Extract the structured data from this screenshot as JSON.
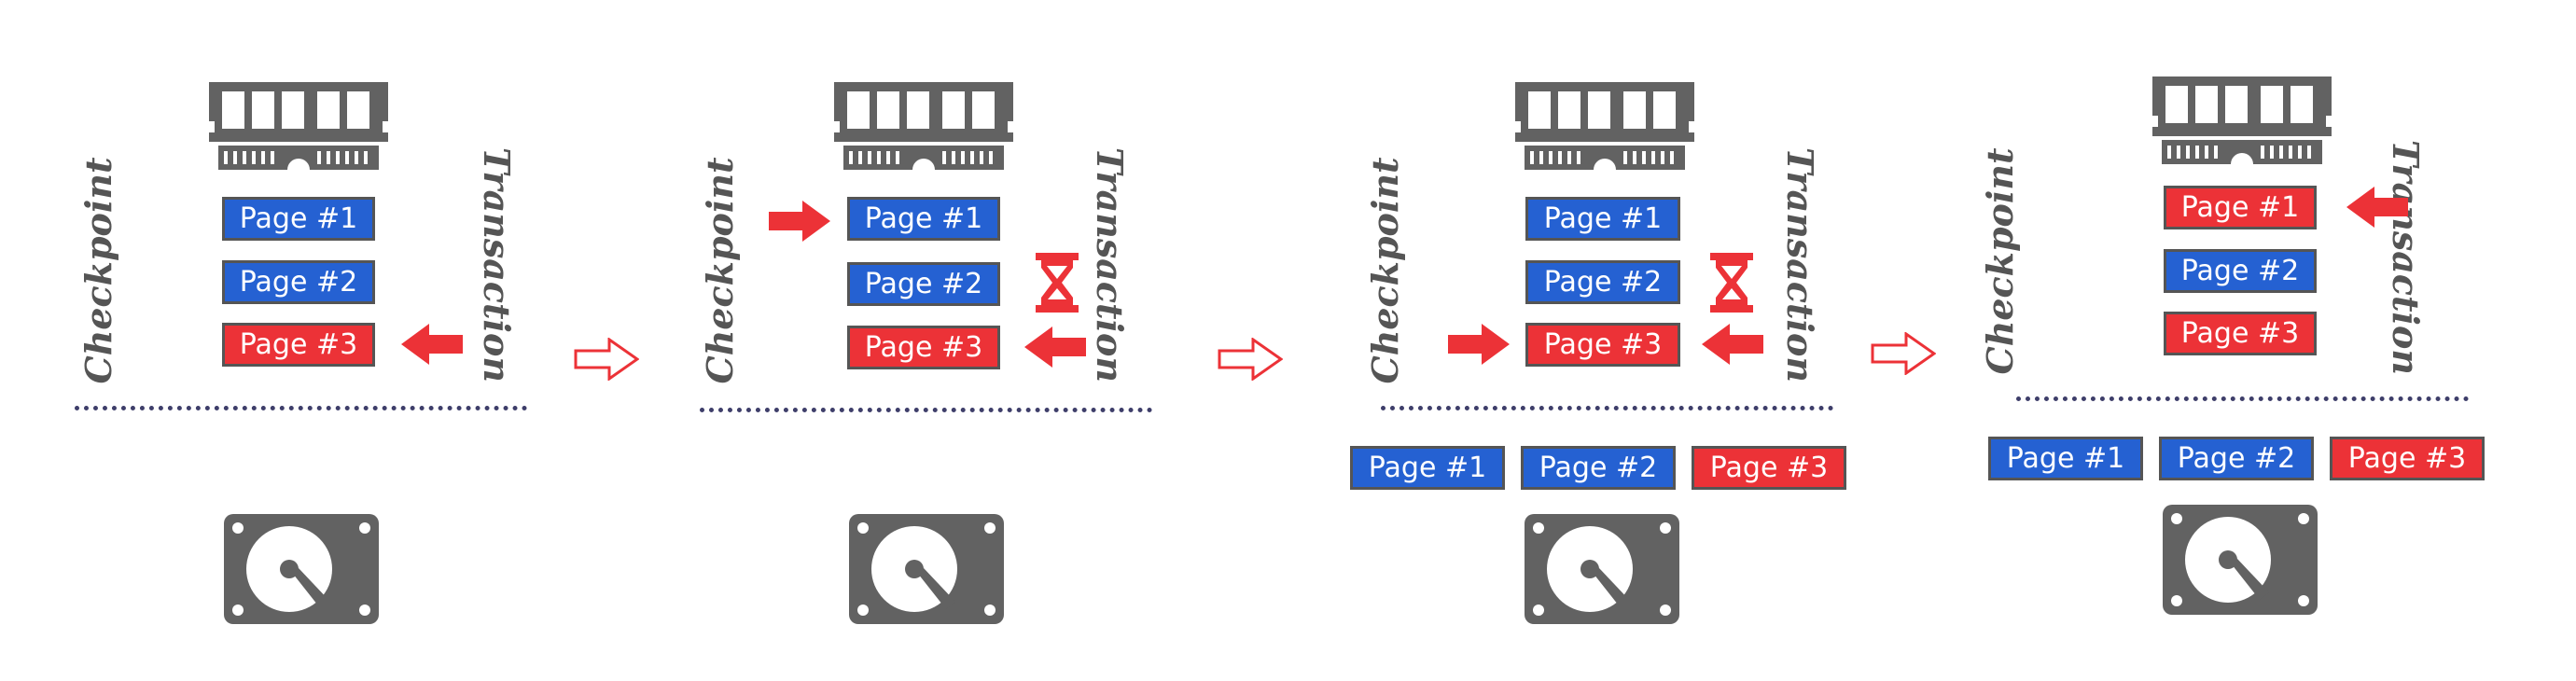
{
  "labels": {
    "checkpoint": "Checkpoint",
    "transaction": "Transaction"
  },
  "pages": [
    "Page #1",
    "Page #2",
    "Page #3"
  ],
  "colors": {
    "clean": "#2561d2",
    "dirty": "#ec3237",
    "device": "#626262",
    "divider": "#3e3e6a"
  },
  "icons": {
    "memory": "memory-module-icon",
    "disk": "hard-disk-icon",
    "wait": "hourglass-icon",
    "arrow": "red-arrow-icon",
    "step": "next-step-arrow-icon"
  }
}
